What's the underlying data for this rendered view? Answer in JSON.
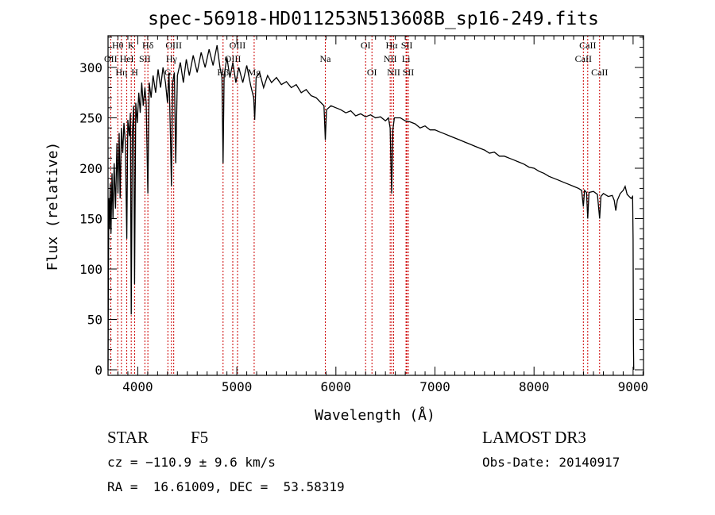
{
  "chart_data": {
    "type": "line",
    "title": "spec-56918-HD011253N513608B_sp16-249.fits",
    "xlabel": "Wavelength (Å)",
    "ylabel": "Flux (relative)",
    "xlim": [
      3700,
      9105
    ],
    "ylim": [
      -5.5,
      331.5
    ],
    "xticks": [
      4000,
      5000,
      6000,
      7000,
      8000,
      9000
    ],
    "yticks": [
      0,
      50,
      100,
      150,
      200,
      250,
      300
    ],
    "grid": false,
    "series": [
      {
        "name": "spectrum",
        "color": "#000000",
        "points": [
          [
            3700,
            0
          ],
          [
            3703,
            90
          ],
          [
            3708,
            170
          ],
          [
            3715,
            140
          ],
          [
            3722,
            185
          ],
          [
            3730,
            135
          ],
          [
            3740,
            195
          ],
          [
            3750,
            150
          ],
          [
            3762,
            205
          ],
          [
            3775,
            160
          ],
          [
            3790,
            225
          ],
          [
            3800,
            175
          ],
          [
            3812,
            235
          ],
          [
            3822,
            170
          ],
          [
            3835,
            240
          ],
          [
            3848,
            215
          ],
          [
            3860,
            245
          ],
          [
            3875,
            225
          ],
          [
            3889,
            130
          ],
          [
            3900,
            248
          ],
          [
            3915,
            232
          ],
          [
            3925,
            255
          ],
          [
            3934,
            55
          ],
          [
            3945,
            235
          ],
          [
            3958,
            262
          ],
          [
            3968,
            85
          ],
          [
            3980,
            265
          ],
          [
            3995,
            245
          ],
          [
            4010,
            275
          ],
          [
            4025,
            255
          ],
          [
            4040,
            285
          ],
          [
            4055,
            262
          ],
          [
            4072,
            280
          ],
          [
            4085,
            265
          ],
          [
            4102,
            175
          ],
          [
            4115,
            285
          ],
          [
            4135,
            270
          ],
          [
            4155,
            292
          ],
          [
            4180,
            275
          ],
          [
            4205,
            298
          ],
          [
            4230,
            280
          ],
          [
            4255,
            300
          ],
          [
            4280,
            285
          ],
          [
            4300,
            265
          ],
          [
            4315,
            295
          ],
          [
            4330,
            230
          ],
          [
            4340,
            182
          ],
          [
            4352,
            285
          ],
          [
            4370,
            295
          ],
          [
            4383,
            205
          ],
          [
            4400,
            292
          ],
          [
            4430,
            305
          ],
          [
            4460,
            285
          ],
          [
            4490,
            308
          ],
          [
            4520,
            292
          ],
          [
            4560,
            312
          ],
          [
            4600,
            295
          ],
          [
            4640,
            315
          ],
          [
            4680,
            300
          ],
          [
            4720,
            318
          ],
          [
            4760,
            302
          ],
          [
            4800,
            322
          ],
          [
            4830,
            300
          ],
          [
            4850,
            290
          ],
          [
            4861,
            205
          ],
          [
            4872,
            292
          ],
          [
            4900,
            310
          ],
          [
            4930,
            290
          ],
          [
            4960,
            305
          ],
          [
            4990,
            285
          ],
          [
            5020,
            300
          ],
          [
            5060,
            285
          ],
          [
            5100,
            302
          ],
          [
            5140,
            282
          ],
          [
            5170,
            270
          ],
          [
            5180,
            248
          ],
          [
            5195,
            290
          ],
          [
            5230,
            295
          ],
          [
            5270,
            280
          ],
          [
            5310,
            292
          ],
          [
            5350,
            285
          ],
          [
            5400,
            290
          ],
          [
            5450,
            283
          ],
          [
            5500,
            286
          ],
          [
            5550,
            280
          ],
          [
            5600,
            283
          ],
          [
            5650,
            275
          ],
          [
            5700,
            278
          ],
          [
            5750,
            272
          ],
          [
            5800,
            270
          ],
          [
            5850,
            265
          ],
          [
            5880,
            262
          ],
          [
            5893,
            228
          ],
          [
            5905,
            258
          ],
          [
            5950,
            262
          ],
          [
            6000,
            260
          ],
          [
            6050,
            258
          ],
          [
            6100,
            255
          ],
          [
            6150,
            257
          ],
          [
            6200,
            252
          ],
          [
            6250,
            254
          ],
          [
            6300,
            251
          ],
          [
            6350,
            253
          ],
          [
            6400,
            250
          ],
          [
            6450,
            251
          ],
          [
            6500,
            247
          ],
          [
            6530,
            250
          ],
          [
            6548,
            240
          ],
          [
            6563,
            175
          ],
          [
            6575,
            238
          ],
          [
            6590,
            250
          ],
          [
            6650,
            250
          ],
          [
            6700,
            247
          ],
          [
            6750,
            246
          ],
          [
            6800,
            244
          ],
          [
            6850,
            240
          ],
          [
            6900,
            242
          ],
          [
            6950,
            238
          ],
          [
            7000,
            238
          ],
          [
            7050,
            236
          ],
          [
            7100,
            234
          ],
          [
            7150,
            232
          ],
          [
            7200,
            230
          ],
          [
            7250,
            228
          ],
          [
            7300,
            226
          ],
          [
            7350,
            224
          ],
          [
            7400,
            222
          ],
          [
            7450,
            220
          ],
          [
            7500,
            218
          ],
          [
            7550,
            215
          ],
          [
            7600,
            216
          ],
          [
            7650,
            212
          ],
          [
            7700,
            212
          ],
          [
            7750,
            210
          ],
          [
            7800,
            208
          ],
          [
            7850,
            206
          ],
          [
            7900,
            204
          ],
          [
            7950,
            201
          ],
          [
            8000,
            200
          ],
          [
            8050,
            197
          ],
          [
            8100,
            195
          ],
          [
            8150,
            192
          ],
          [
            8200,
            190
          ],
          [
            8250,
            188
          ],
          [
            8300,
            186
          ],
          [
            8350,
            184
          ],
          [
            8400,
            182
          ],
          [
            8450,
            180
          ],
          [
            8480,
            178
          ],
          [
            8498,
            162
          ],
          [
            8510,
            178
          ],
          [
            8530,
            176
          ],
          [
            8542,
            150
          ],
          [
            8555,
            176
          ],
          [
            8600,
            177
          ],
          [
            8640,
            174
          ],
          [
            8662,
            150
          ],
          [
            8675,
            172
          ],
          [
            8700,
            175
          ],
          [
            8750,
            172
          ],
          [
            8790,
            173
          ],
          [
            8810,
            168
          ],
          [
            8825,
            158
          ],
          [
            8840,
            168
          ],
          [
            8870,
            175
          ],
          [
            8900,
            178
          ],
          [
            8920,
            182
          ],
          [
            8940,
            174
          ],
          [
            8960,
            172
          ],
          [
            8980,
            170
          ],
          [
            8995,
            172
          ],
          [
            9000,
            130
          ],
          [
            9003,
            30
          ],
          [
            9006,
            0
          ]
        ]
      }
    ],
    "lines": [
      {
        "label": "OII",
        "wl": 3727,
        "row": 2
      },
      {
        "label": "Hθ",
        "wl": 3798,
        "row": 1
      },
      {
        "label": "Hη",
        "wl": 3835,
        "row": 3
      },
      {
        "label": "HeI",
        "wl": 3889,
        "row": 2
      },
      {
        "label": "K",
        "wl": 3934,
        "row": 1
      },
      {
        "label": "H",
        "wl": 3969,
        "row": 3
      },
      {
        "label": "SII",
        "wl": 4072,
        "row": 2
      },
      {
        "label": "Hδ",
        "wl": 4102,
        "row": 1
      },
      {
        "label": "G",
        "wl": 4304,
        "row": 3
      },
      {
        "label": "Hγ",
        "wl": 4340,
        "row": 2
      },
      {
        "label": "OIII",
        "wl": 4363,
        "row": 1
      },
      {
        "label": "Hβ",
        "wl": 4861,
        "row": 3
      },
      {
        "label": "OIII",
        "wl": 4959,
        "row": 2
      },
      {
        "label": "OIII",
        "wl": 5007,
        "row": 1
      },
      {
        "label": "Mg",
        "wl": 5175,
        "row": 3
      },
      {
        "label": "Na",
        "wl": 5893,
        "row": 2
      },
      {
        "label": "OI",
        "wl": 6300,
        "row": 1
      },
      {
        "label": "OI",
        "wl": 6364,
        "row": 3
      },
      {
        "label": "NII",
        "wl": 6548,
        "row": 2
      },
      {
        "label": "Hα",
        "wl": 6563,
        "row": 1
      },
      {
        "label": "NII",
        "wl": 6583,
        "row": 3
      },
      {
        "label": "Li",
        "wl": 6708,
        "row": 2
      },
      {
        "label": "SII",
        "wl": 6716,
        "row": 1
      },
      {
        "label": "SII",
        "wl": 6731,
        "row": 3
      },
      {
        "label": "CaII",
        "wl": 8498,
        "row": 2
      },
      {
        "label": "CaII",
        "wl": 8542,
        "row": 1
      },
      {
        "label": "CaII",
        "wl": 8662,
        "row": 3
      }
    ],
    "line_color": "#cc0000"
  },
  "info": {
    "object_type": "STAR",
    "subclass": "F5",
    "cz": "cz = −110.9 ± 9.6 km/s",
    "coords": "RA =  16.61009, DEC =  53.58319",
    "survey": "LAMOST DR3",
    "obs_date": "Obs-Date: 20140917"
  }
}
